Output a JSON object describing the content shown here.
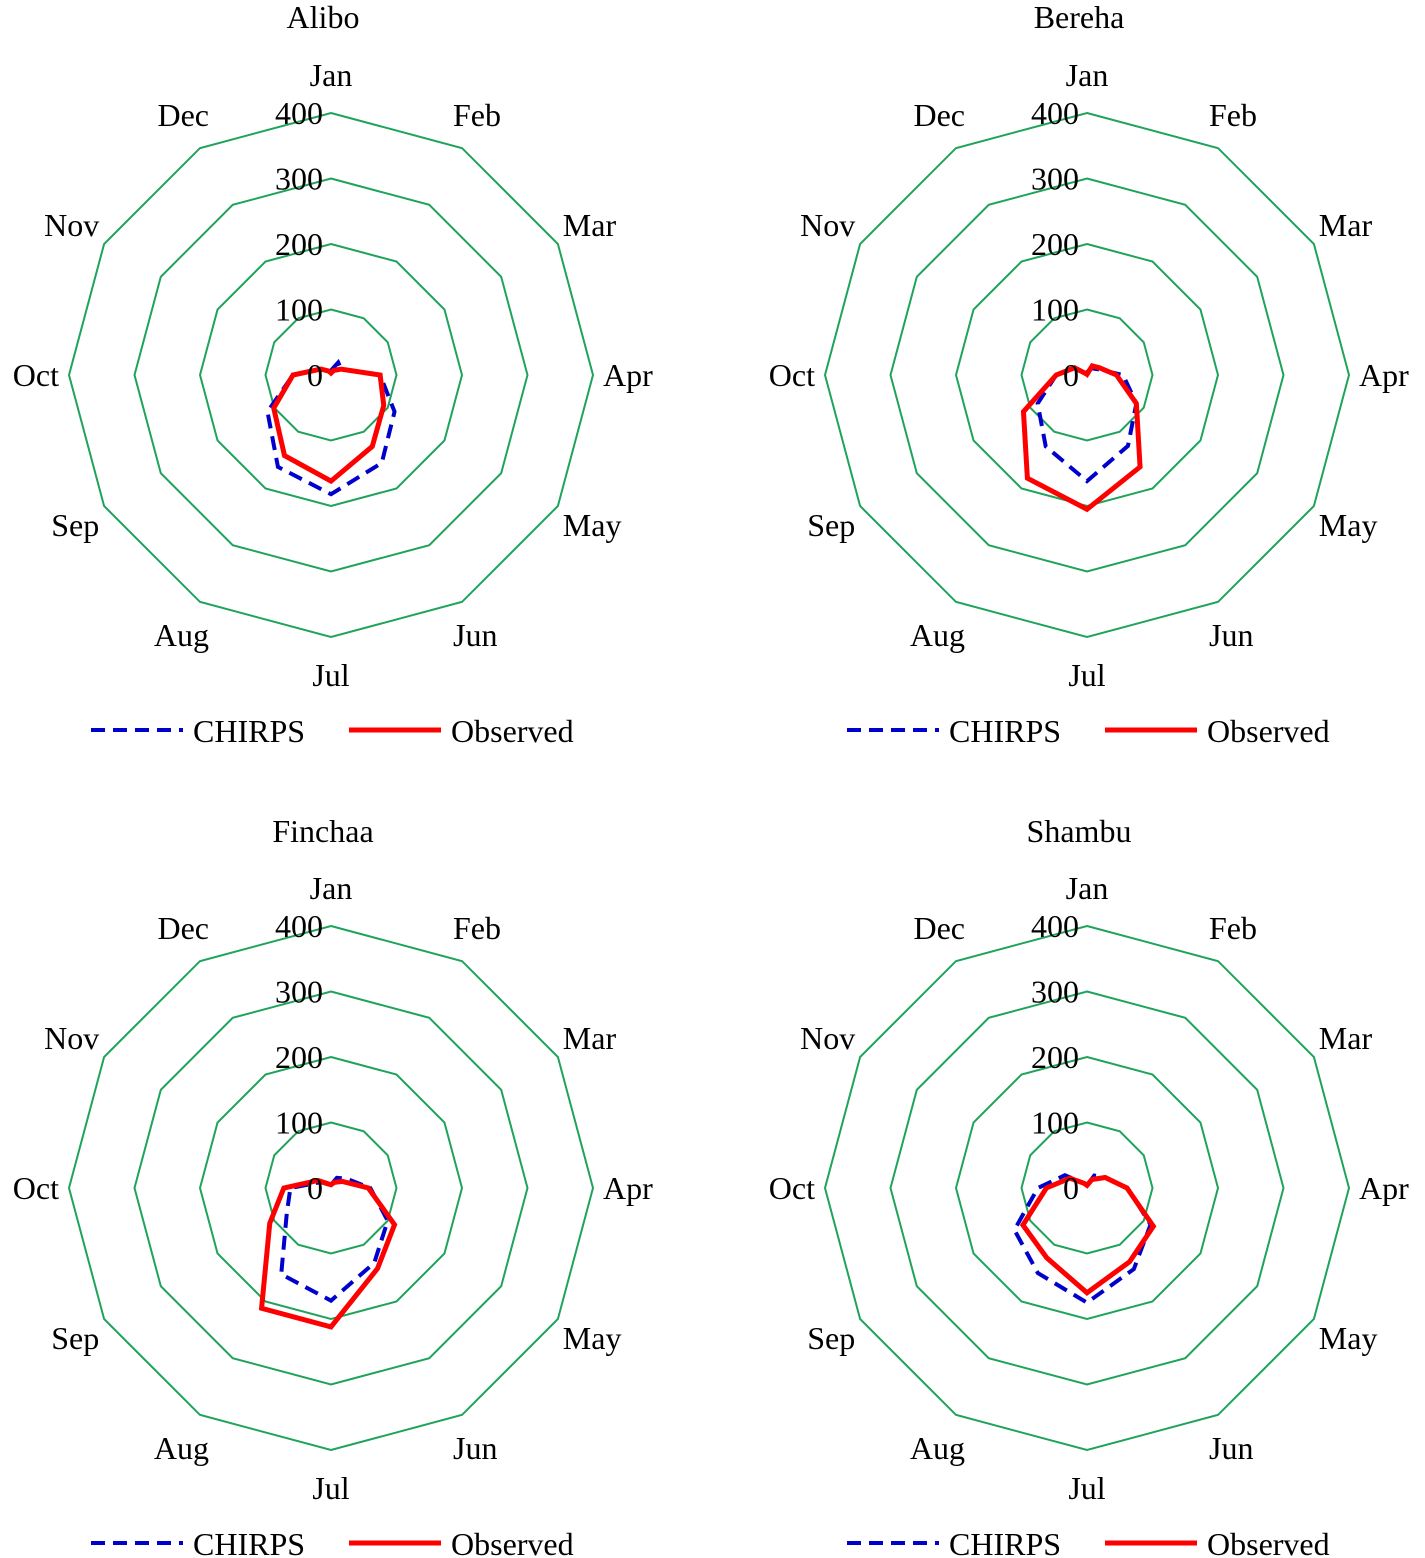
{
  "chart_data": [
    {
      "type": "radar",
      "title": "Alibo",
      "categories": [
        "Jan",
        "Feb",
        "Mar",
        "Apr",
        "May",
        "Jun",
        "Jul",
        "Aug",
        "Sep",
        "Oct",
        "Nov",
        "Dec"
      ],
      "rlim": [
        0,
        400
      ],
      "rticks": [
        "0",
        "100",
        "200",
        "300",
        "400"
      ],
      "grid": true,
      "legend_position": "bottom",
      "series": [
        {
          "name": "CHIRPS",
          "color": "#0000cc",
          "style": "dashed",
          "values": [
            7,
            22,
            18,
            75,
            112,
            155,
            182,
            162,
            112,
            58,
            18,
            6
          ]
        },
        {
          "name": "Observed",
          "color": "#ff0000",
          "style": "solid",
          "values": [
            3,
            8,
            18,
            75,
            93,
            126,
            162,
            142,
            101,
            58,
            18,
            7
          ]
        }
      ]
    },
    {
      "type": "radar",
      "title": "Bereha",
      "categories": [
        "Jan",
        "Feb",
        "Mar",
        "Apr",
        "May",
        "Jun",
        "Jul",
        "Aug",
        "Sep",
        "Oct",
        "Nov",
        "Dec"
      ],
      "rlim": [
        0,
        400
      ],
      "rticks": [
        "0",
        "100",
        "200",
        "300",
        "400"
      ],
      "grid": true,
      "legend_position": "bottom",
      "series": [
        {
          "name": "CHIRPS",
          "color": "#0000cc",
          "style": "dashed",
          "values": [
            4,
            12,
            18,
            55,
            87,
            125,
            162,
            126,
            87,
            47,
            22,
            4
          ]
        },
        {
          "name": "Observed",
          "color": "#ff0000",
          "style": "solid",
          "values": [
            1,
            16,
            22,
            45,
            87,
            162,
            205,
            182,
            112,
            47,
            22,
            2
          ]
        }
      ]
    },
    {
      "type": "radar",
      "title": "Finchaa",
      "categories": [
        "Jan",
        "Feb",
        "Mar",
        "Apr",
        "May",
        "Jun",
        "Jul",
        "Aug",
        "Sep",
        "Oct",
        "Nov",
        "Dec"
      ],
      "rlim": [
        0,
        400
      ],
      "rticks": [
        "0",
        "100",
        "200",
        "300",
        "400"
      ],
      "grid": true,
      "legend_position": "bottom",
      "series": [
        {
          "name": "CHIRPS",
          "color": "#0000cc",
          "style": "dashed",
          "values": [
            5,
            18,
            28,
            60,
            100,
            132,
            172,
            152,
            78,
            62,
            18,
            6
          ]
        },
        {
          "name": "Observed",
          "color": "#ff0000",
          "style": "solid",
          "values": [
            5,
            10,
            20,
            57,
            112,
            142,
            212,
            212,
            108,
            72,
            23,
            7
          ]
        }
      ]
    },
    {
      "type": "radar",
      "title": "Shambu",
      "categories": [
        "Jan",
        "Feb",
        "Mar",
        "Apr",
        "May",
        "Jun",
        "Jul",
        "Aug",
        "Sep",
        "Oct",
        "Nov",
        "Dec"
      ],
      "rlim": [
        0,
        400
      ],
      "rticks": [
        "0",
        "100",
        "200",
        "300",
        "400"
      ],
      "grid": true,
      "legend_position": "bottom",
      "series": [
        {
          "name": "CHIRPS",
          "color": "#0000cc",
          "style": "dashed",
          "values": [
            4,
            22,
            32,
            62,
            112,
            143,
            175,
            150,
            128,
            75,
            39,
            8
          ]
        },
        {
          "name": "Observed",
          "color": "#ff0000",
          "style": "solid",
          "values": [
            4,
            15,
            32,
            61,
            117,
            130,
            160,
            123,
            113,
            62,
            30,
            8
          ]
        }
      ]
    }
  ]
}
